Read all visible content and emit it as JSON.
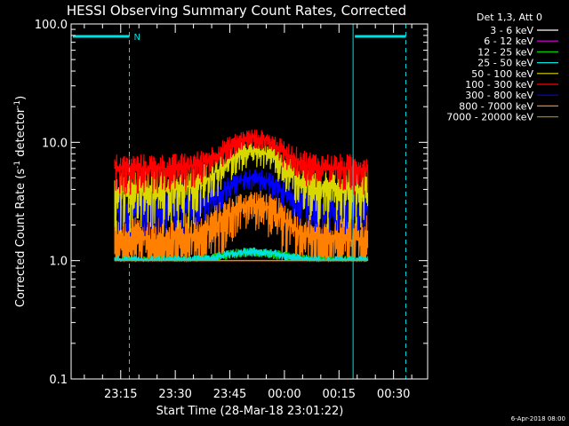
{
  "chart_data": {
    "type": "line",
    "title": "HESSI Observing Summary Count Rates, Corrected",
    "xlabel": "Start Time (28-Mar-18 23:01:22)",
    "ylabel_main": "Corrected Count Rate (s",
    "ylabel_sup1": "-1",
    "ylabel_mid": " detector",
    "ylabel_sup2": "-1",
    "ylabel_end": ")",
    "yscale": "log",
    "ylim": [
      0.1,
      100.0
    ],
    "y_ticks": [
      "0.1",
      "1.0",
      "10.0",
      "100.0"
    ],
    "x_ticks": [
      "23:15",
      "23:30",
      "23:45",
      "00:00",
      "00:15",
      "00:30"
    ],
    "x_tick_minutes": [
      13.63,
      28.63,
      43.63,
      58.63,
      73.63,
      88.63
    ],
    "xlim_minutes": [
      0,
      98
    ],
    "data_range_minutes": [
      12,
      81.5
    ],
    "legend_header": "Det 1,3, Att 0",
    "night_marker": "N",
    "night_bars_minutes": [
      [
        0,
        16
      ],
      [
        77.5,
        92
      ]
    ],
    "boundaries_solid_minutes": [
      0,
      77.5
    ],
    "boundaries_dashed_minutes": [
      16,
      92
    ],
    "date_stamp": "6-Apr-2018 08:00",
    "series": [
      {
        "name": "3 - 6 keV",
        "color": "#000000",
        "base": 1.0,
        "peak": 1.0,
        "spread": 0.0
      },
      {
        "name": "6 - 12 keV",
        "color": "#e000e0",
        "base": 1.0,
        "peak": 1.0,
        "spread": 0.0
      },
      {
        "name": "12 - 25 keV",
        "color": "#00cc00",
        "base": 1.0,
        "peak": 1.2,
        "spread": 0.1
      },
      {
        "name": "25 - 50 keV",
        "color": "#00e0e0",
        "base": 1.0,
        "peak": 1.2,
        "spread": 0.1
      },
      {
        "name": "50 - 100 keV",
        "color": "#d8d800",
        "base": 4.0,
        "peak": 8.5,
        "spread": 2.0
      },
      {
        "name": "100 - 300 keV",
        "color": "#ff0000",
        "base": 6.0,
        "peak": 11.0,
        "spread": 2.0
      },
      {
        "name": "300 - 800 keV",
        "color": "#0000ff",
        "base": 2.8,
        "peak": 5.0,
        "spread": 1.0
      },
      {
        "name": "800 - 7000 keV",
        "color": "#ff8000",
        "base": 1.5,
        "peak": 3.0,
        "spread": 1.0
      },
      {
        "name": "7000 - 20000 keV",
        "color": "#a08000",
        "base": 1.0,
        "peak": 1.0,
        "spread": 0.0
      }
    ]
  }
}
